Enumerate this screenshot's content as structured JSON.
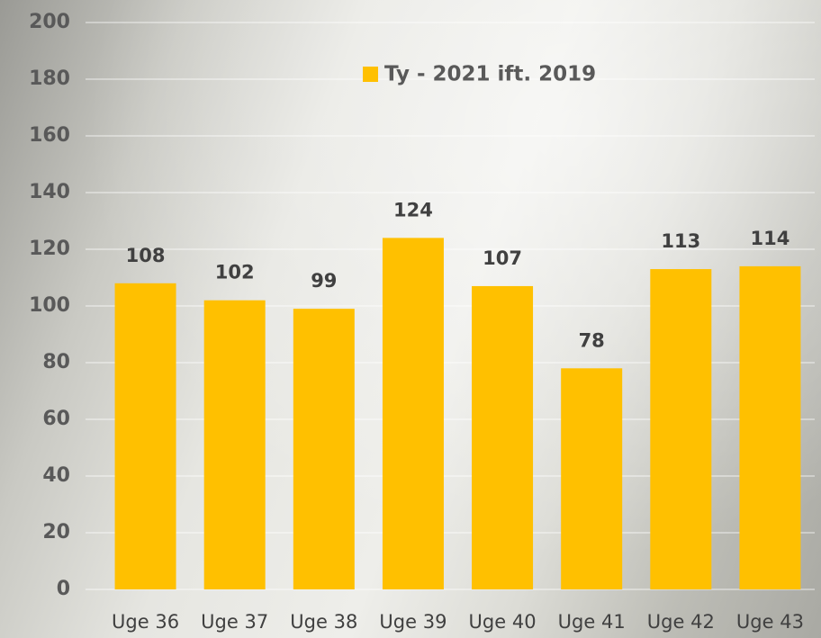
{
  "chart_data": {
    "type": "bar",
    "categories": [
      "Uge 36",
      "Uge 37",
      "Uge 38",
      "Uge 39",
      "Uge 40",
      "Uge 41",
      "Uge 42",
      "Uge 43"
    ],
    "series": [
      {
        "name": "Ty - 2021 ift. 2019",
        "color": "#ffc000",
        "values": [
          108,
          102,
          99,
          124,
          107,
          78,
          113,
          114
        ]
      }
    ],
    "ylim": [
      0,
      200
    ],
    "yticks": [
      0,
      20,
      40,
      60,
      80,
      100,
      120,
      140,
      160,
      180,
      200
    ],
    "grid": true,
    "legend": "top"
  }
}
